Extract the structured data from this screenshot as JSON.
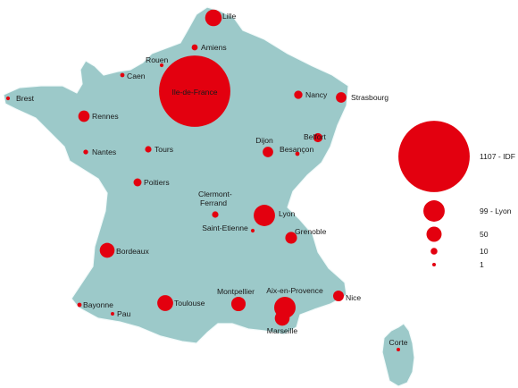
{
  "map": {
    "land_color": "#9cc9c9",
    "marker_color": "#e3000f",
    "cities": [
      {
        "name": "Lille",
        "value": 60
      },
      {
        "name": "Amiens",
        "value": 8
      },
      {
        "name": "Rouen",
        "value": 3
      },
      {
        "name": "Caen",
        "value": 4
      },
      {
        "name": "Ile-de-France",
        "value": 1107
      },
      {
        "name": "Brest",
        "value": 3
      },
      {
        "name": "Rennes",
        "value": 28
      },
      {
        "name": "Nancy",
        "value": 15
      },
      {
        "name": "Strasbourg",
        "value": 24
      },
      {
        "name": "Nantes",
        "value": 5
      },
      {
        "name": "Tours",
        "value": 9
      },
      {
        "name": "Dijon",
        "value": 24
      },
      {
        "name": "Belfort",
        "value": 18
      },
      {
        "name": "Besançon",
        "value": 4
      },
      {
        "name": "Poitiers",
        "value": 14
      },
      {
        "name": "Clermont-Ferrand",
        "value": 9
      },
      {
        "name": "Lyon",
        "value": 99
      },
      {
        "name": "Saint-Etienne",
        "value": 3
      },
      {
        "name": "Grenoble",
        "value": 30
      },
      {
        "name": "Bordeaux",
        "value": 48
      },
      {
        "name": "Bayonne",
        "value": 4
      },
      {
        "name": "Pau",
        "value": 2
      },
      {
        "name": "Toulouse",
        "value": 55
      },
      {
        "name": "Montpellier",
        "value": 45
      },
      {
        "name": "Aix-en-Provence",
        "value": 100
      },
      {
        "name": "Marseille",
        "value": 48
      },
      {
        "name": "Nice",
        "value": 25
      },
      {
        "name": "Corte",
        "value": 2
      }
    ]
  },
  "legend": [
    {
      "label": "1107 - IDF",
      "value": 1107
    },
    {
      "label": "99 - Lyon",
      "value": 99
    },
    {
      "label": "50",
      "value": 50
    },
    {
      "label": "10",
      "value": 10
    },
    {
      "label": "1",
      "value": 1
    }
  ]
}
